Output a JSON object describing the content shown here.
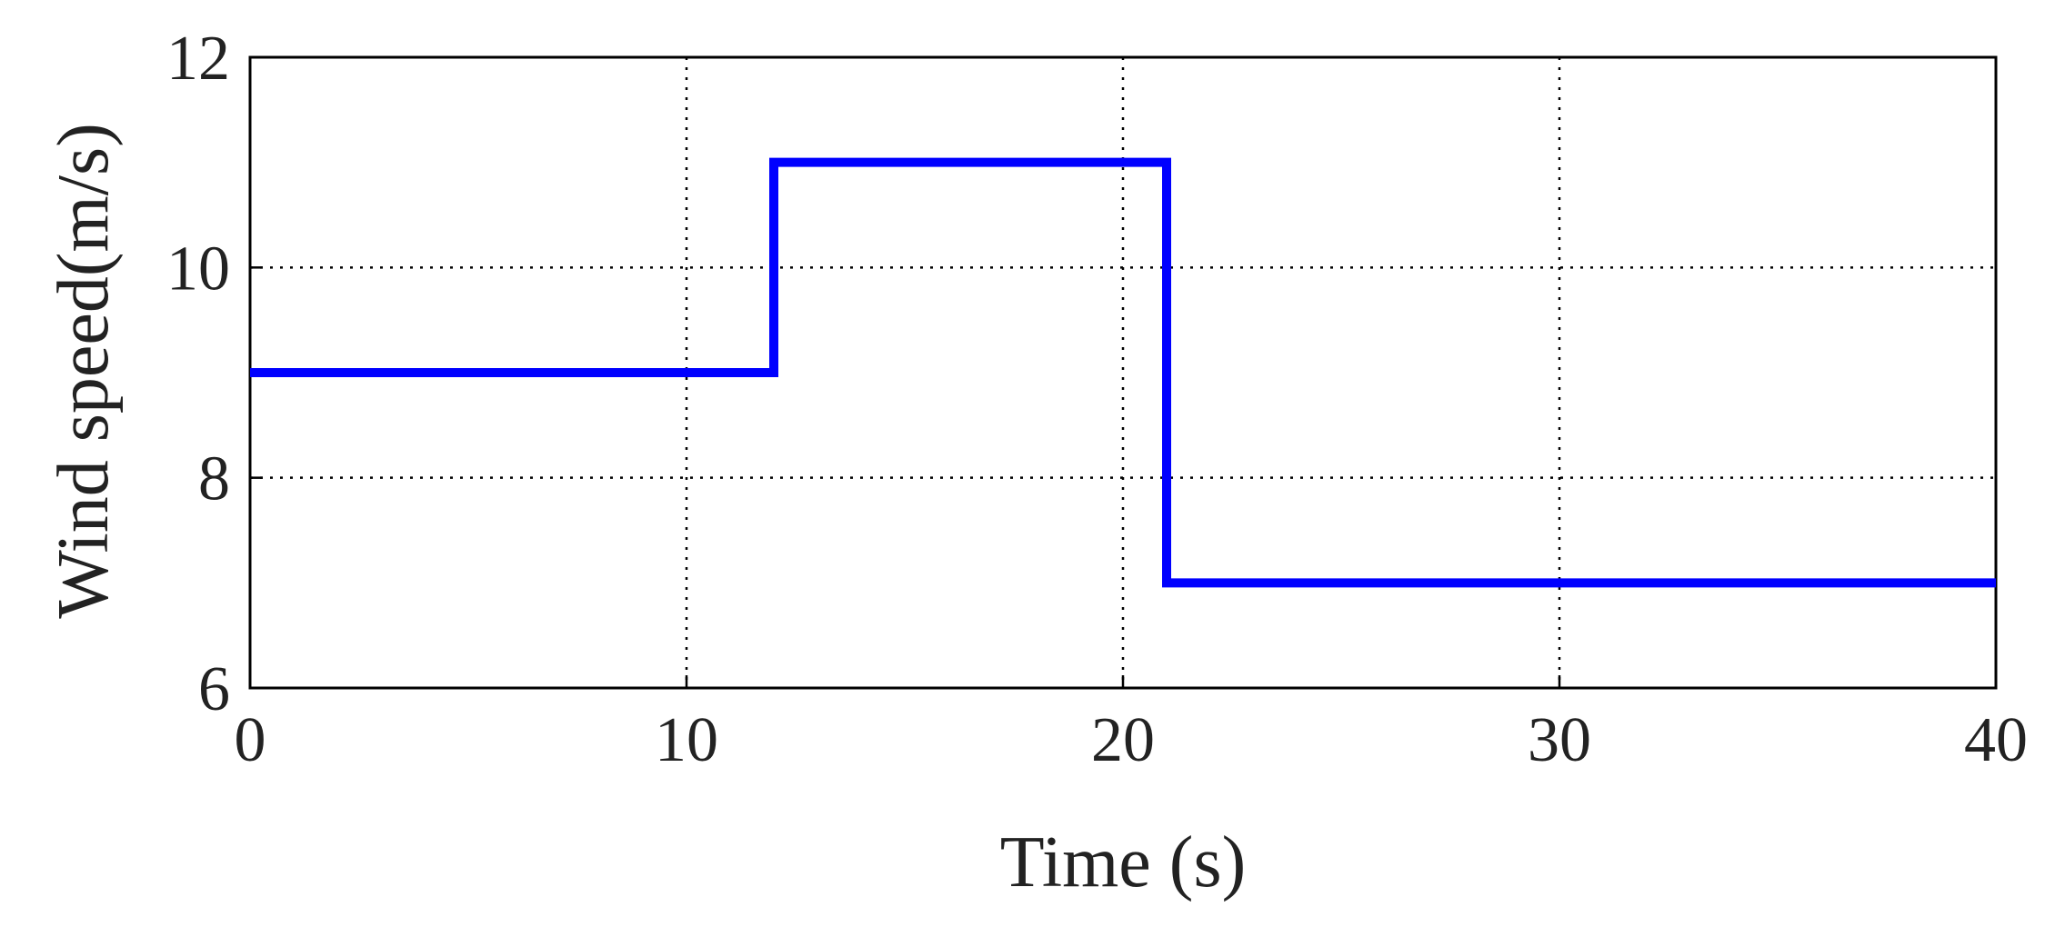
{
  "chart_data": {
    "type": "line",
    "x_label": "Time (s)",
    "y_label": "Wind speed(m/s)",
    "x": [
      0,
      12,
      12,
      21,
      21,
      40
    ],
    "series": [
      {
        "color": "#0000ff",
        "values": [
          9,
          9,
          11,
          11,
          7,
          7
        ]
      }
    ],
    "xlim": [
      0,
      40
    ],
    "xticks": [
      0,
      10,
      20,
      30,
      40
    ],
    "ylim": [
      6,
      12
    ],
    "yticks": [
      6,
      8,
      10,
      12
    ],
    "grid": true
  }
}
